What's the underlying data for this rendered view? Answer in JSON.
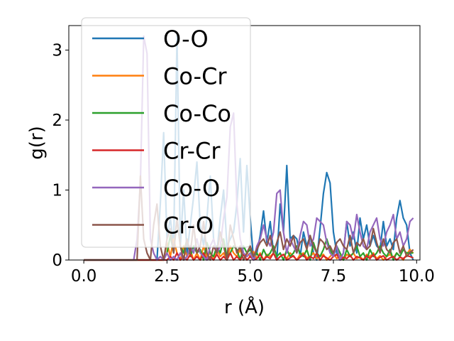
{
  "chart_data": {
    "type": "line",
    "xlabel": "r (Å)",
    "ylabel": "g(r)",
    "xlim": [
      -0.45,
      10.1
    ],
    "ylim": [
      0,
      3.35
    ],
    "xticks": [
      0.0,
      2.5,
      5.0,
      7.5,
      10.0
    ],
    "xtick_labels": [
      "0.0",
      "2.5",
      "5.0",
      "7.5",
      "10.0"
    ],
    "yticks": [
      0,
      1,
      2,
      3
    ],
    "ytick_labels": [
      "0",
      "1",
      "2",
      "3"
    ],
    "grid": false,
    "legend_position": "upper-left",
    "series": [
      {
        "name": "O-O",
        "color": "#1f77b4",
        "x": [
          0.0,
          1.6,
          2.2,
          2.3,
          2.4,
          2.5,
          2.6,
          2.7,
          2.8,
          2.9,
          3.0,
          3.1,
          3.2,
          3.3,
          3.4,
          3.5,
          3.6,
          3.7,
          3.8,
          3.9,
          4.0,
          4.1,
          4.2,
          4.3,
          4.4,
          4.5,
          4.6,
          4.7,
          4.8,
          4.9,
          5.0,
          5.1,
          5.2,
          5.3,
          5.4,
          5.5,
          5.6,
          5.7,
          5.8,
          5.9,
          6.0,
          6.1,
          6.2,
          6.3,
          6.4,
          6.5,
          6.6,
          6.7,
          6.8,
          6.9,
          7.0,
          7.1,
          7.2,
          7.3,
          7.4,
          7.5,
          7.6,
          7.7,
          7.8,
          7.9,
          8.0,
          8.1,
          8.2,
          8.3,
          8.4,
          8.5,
          8.6,
          8.7,
          8.8,
          8.9,
          9.0,
          9.1,
          9.2,
          9.3,
          9.4,
          9.5,
          9.6,
          9.7,
          9.8,
          9.9
        ],
        "y": [
          0.0,
          0.0,
          0.0,
          0.8,
          1.82,
          0.3,
          0.6,
          0.2,
          3.2,
          0.2,
          1.0,
          0.1,
          0.5,
          0.9,
          1.4,
          0.5,
          0.2,
          0.6,
          1.2,
          0.3,
          0.1,
          0.6,
          1.0,
          0.2,
          0.3,
          0.4,
          0.8,
          1.45,
          0.4,
          1.35,
          0.6,
          0.0,
          0.1,
          0.35,
          0.7,
          0.25,
          0.55,
          0.1,
          0.0,
          0.8,
          0.4,
          1.35,
          0.3,
          0.35,
          0.3,
          0.05,
          0.4,
          0.2,
          0.35,
          0.1,
          0.0,
          0.45,
          0.95,
          1.25,
          1.1,
          0.4,
          0.1,
          0.0,
          0.1,
          0.55,
          0.2,
          0.4,
          0.1,
          0.6,
          0.3,
          0.5,
          0.2,
          0.35,
          0.2,
          0.15,
          0.55,
          0.2,
          0.3,
          0.15,
          0.6,
          0.85,
          0.6,
          0.5,
          0.1,
          0.0
        ]
      },
      {
        "name": "Co-Cr",
        "color": "#ff7f0e",
        "x": [
          0.0,
          2.4,
          2.5,
          2.6,
          2.7,
          2.8,
          2.9,
          3.0,
          3.1,
          3.2,
          3.3,
          3.4,
          3.5,
          3.6,
          3.7,
          3.8,
          3.9,
          4.0,
          4.1,
          4.2,
          4.3,
          4.4,
          4.5,
          4.6,
          4.7,
          4.8,
          4.9,
          5.0,
          5.1,
          5.2,
          5.3,
          5.4,
          5.5,
          5.6,
          5.7,
          5.8,
          5.9,
          6.0,
          6.1,
          6.2,
          6.3,
          6.4,
          6.5,
          6.6,
          6.7,
          6.8,
          6.9,
          7.0,
          7.1,
          7.2,
          7.3,
          7.4,
          7.5,
          7.6,
          7.7,
          7.8,
          7.9,
          8.0,
          8.1,
          8.2,
          8.3,
          8.4,
          8.5,
          8.6,
          8.7,
          8.8,
          8.9,
          9.0,
          9.1,
          9.2,
          9.3,
          9.4,
          9.5,
          9.6,
          9.7,
          9.8,
          9.9
        ],
        "y": [
          0.0,
          0.0,
          0.25,
          0.05,
          0.3,
          0.1,
          0.0,
          0.2,
          0.05,
          0.15,
          0.0,
          0.1,
          0.0,
          0.2,
          0.05,
          0.1,
          0.0,
          0.15,
          0.05,
          0.1,
          0.0,
          0.2,
          0.1,
          0.05,
          0.15,
          0.0,
          0.1,
          0.05,
          0.12,
          0.02,
          0.1,
          0.0,
          0.08,
          0.05,
          0.1,
          0.0,
          0.05,
          0.08,
          0.02,
          0.1,
          0.05,
          0.0,
          0.08,
          0.1,
          0.03,
          0.05,
          0.1,
          0.02,
          0.05,
          0.08,
          0.0,
          0.05,
          0.1,
          0.02,
          0.06,
          0.0,
          0.08,
          0.05,
          0.1,
          0.02,
          0.05,
          0.0,
          0.08,
          0.05,
          0.1,
          0.02,
          0.06,
          0.0,
          0.05,
          0.08,
          0.03,
          0.1,
          0.05,
          0.0,
          0.08,
          0.15,
          0.1
        ]
      },
      {
        "name": "Co-Co",
        "color": "#2ca02c",
        "x": [
          0.0,
          2.4,
          2.5,
          2.6,
          2.7,
          2.8,
          2.9,
          3.0,
          3.1,
          3.2,
          3.3,
          3.4,
          3.5,
          3.6,
          3.7,
          3.8,
          3.9,
          4.0,
          4.1,
          4.2,
          4.3,
          4.4,
          4.5,
          4.6,
          4.7,
          4.8,
          4.9,
          5.0,
          5.1,
          5.2,
          5.3,
          5.4,
          5.5,
          5.6,
          5.7,
          5.8,
          5.9,
          6.0,
          6.1,
          6.2,
          6.3,
          6.4,
          6.5,
          6.6,
          6.7,
          6.8,
          6.9,
          7.0,
          7.1,
          7.2,
          7.3,
          7.4,
          7.5,
          7.6,
          7.7,
          7.8,
          7.9,
          8.0,
          8.1,
          8.2,
          8.3,
          8.4,
          8.5,
          8.6,
          8.7,
          8.8,
          8.9,
          9.0,
          9.1,
          9.2,
          9.3,
          9.4,
          9.5,
          9.6,
          9.7,
          9.8,
          9.9
        ],
        "y": [
          0.0,
          0.0,
          0.1,
          0.35,
          0.1,
          0.6,
          0.2,
          0.1,
          0.3,
          0.05,
          0.2,
          0.1,
          0.15,
          0.0,
          0.25,
          0.1,
          0.05,
          0.2,
          0.1,
          0.3,
          0.05,
          0.1,
          0.2,
          0.15,
          0.0,
          0.2,
          0.1,
          0.15,
          0.05,
          0.1,
          0.0,
          0.15,
          0.05,
          0.1,
          0.2,
          0.05,
          0.1,
          0.0,
          0.15,
          0.05,
          0.1,
          0.2,
          0.1,
          0.05,
          0.15,
          0.0,
          0.25,
          0.1,
          0.05,
          0.15,
          0.3,
          0.15,
          0.05,
          0.2,
          0.1,
          0.0,
          0.15,
          0.05,
          0.1,
          0.2,
          0.05,
          0.1,
          0.0,
          0.15,
          0.05,
          0.1,
          0.2,
          0.1,
          0.05,
          0.15,
          0.0,
          0.1,
          0.05,
          0.15,
          0.1,
          0.1,
          0.1
        ]
      },
      {
        "name": "Cr-Cr",
        "color": "#d62728",
        "x": [
          0.0,
          2.5,
          2.6,
          2.7,
          2.8,
          2.9,
          3.0,
          3.1,
          3.2,
          3.3,
          3.4,
          3.5,
          3.6,
          3.7,
          3.8,
          3.9,
          4.0,
          4.1,
          4.2,
          4.3,
          4.4,
          4.5,
          4.6,
          4.7,
          4.8,
          4.9,
          5.0,
          5.1,
          5.2,
          5.3,
          5.4,
          5.5,
          5.6,
          5.7,
          5.8,
          5.9,
          6.0,
          6.1,
          6.2,
          6.3,
          6.4,
          6.5,
          6.6,
          6.7,
          6.8,
          6.9,
          7.0,
          7.1,
          7.2,
          7.3,
          7.4,
          7.5,
          7.6,
          7.7,
          7.8,
          7.9,
          8.0,
          8.1,
          8.2,
          8.3,
          8.4,
          8.5,
          8.6,
          8.7,
          8.8,
          8.9,
          9.0,
          9.1,
          9.2,
          9.3,
          9.4,
          9.5,
          9.6,
          9.7,
          9.8,
          9.9
        ],
        "y": [
          0.0,
          0.0,
          0.05,
          0.0,
          0.1,
          0.0,
          0.05,
          0.0,
          0.08,
          0.0,
          0.05,
          0.0,
          0.1,
          0.0,
          0.05,
          0.0,
          0.08,
          0.0,
          0.05,
          0.0,
          0.1,
          0.0,
          0.05,
          0.0,
          0.08,
          0.0,
          0.05,
          0.0,
          0.02,
          0.08,
          0.0,
          0.05,
          0.02,
          0.1,
          0.0,
          0.05,
          0.08,
          0.0,
          0.03,
          0.06,
          0.0,
          0.04,
          0.08,
          0.0,
          0.05,
          0.02,
          0.1,
          0.0,
          0.06,
          0.03,
          0.0,
          0.05,
          0.08,
          0.0,
          0.04,
          0.02,
          0.07,
          0.0,
          0.05,
          0.03,
          0.0,
          0.06,
          0.02,
          0.08,
          0.0,
          0.04,
          0.06,
          0.0,
          0.03,
          0.05,
          0.0,
          0.04,
          0.02,
          0.06,
          0.05,
          0.03
        ]
      },
      {
        "name": "Co-O",
        "color": "#9467bd",
        "x": [
          0.0,
          1.5,
          1.6,
          1.7,
          1.8,
          1.9,
          2.0,
          2.1,
          2.2,
          2.3,
          2.4,
          2.5,
          2.6,
          2.7,
          2.8,
          2.9,
          3.0,
          3.1,
          3.2,
          3.3,
          3.4,
          3.5,
          3.6,
          3.7,
          3.8,
          3.9,
          4.0,
          4.1,
          4.2,
          4.3,
          4.4,
          4.5,
          4.6,
          4.7,
          4.8,
          4.9,
          5.0,
          5.1,
          5.2,
          5.3,
          5.4,
          5.5,
          5.6,
          5.7,
          5.8,
          5.9,
          6.0,
          6.1,
          6.2,
          6.3,
          6.4,
          6.5,
          6.6,
          6.7,
          6.8,
          6.9,
          7.0,
          7.1,
          7.2,
          7.3,
          7.4,
          7.5,
          7.6,
          7.7,
          7.8,
          7.9,
          8.0,
          8.1,
          8.2,
          8.3,
          8.4,
          8.5,
          8.6,
          8.7,
          8.8,
          8.9,
          9.0,
          9.1,
          9.2,
          9.3,
          9.4,
          9.5,
          9.6,
          9.7,
          9.8,
          9.9
        ],
        "y": [
          0.0,
          0.0,
          0.3,
          1.1,
          3.2,
          2.95,
          0.3,
          0.1,
          0.0,
          0.05,
          0.0,
          0.1,
          0.0,
          0.05,
          0.0,
          0.1,
          0.0,
          0.05,
          0.2,
          0.1,
          0.3,
          0.1,
          0.05,
          0.0,
          0.2,
          0.3,
          0.1,
          0.2,
          0.6,
          0.9,
          1.9,
          2.1,
          0.8,
          0.3,
          0.1,
          0.05,
          0.1,
          0.0,
          0.2,
          0.3,
          0.5,
          0.3,
          0.2,
          0.4,
          0.95,
          1.0,
          0.4,
          0.1,
          0.3,
          0.2,
          0.1,
          0.35,
          0.55,
          0.5,
          0.2,
          0.3,
          0.6,
          0.55,
          0.5,
          0.25,
          0.1,
          0.05,
          0.2,
          0.0,
          0.1,
          0.55,
          0.5,
          0.3,
          0.65,
          0.4,
          0.2,
          0.15,
          0.4,
          0.5,
          0.6,
          0.3,
          0.2,
          0.4,
          0.5,
          0.65,
          0.3,
          0.4,
          0.2,
          0.3,
          0.55,
          0.6
        ]
      },
      {
        "name": "Cr-O",
        "color": "#8c564b",
        "x": [
          0.0,
          1.6,
          1.7,
          1.8,
          1.9,
          2.0,
          2.1,
          2.2,
          2.3,
          2.4,
          2.5,
          2.6,
          2.7,
          2.8,
          2.9,
          3.0,
          3.1,
          3.2,
          3.3,
          3.4,
          3.5,
          3.6,
          3.7,
          3.8,
          3.9,
          4.0,
          4.1,
          4.2,
          4.3,
          4.4,
          4.5,
          4.6,
          4.7,
          4.8,
          4.9,
          5.0,
          5.1,
          5.2,
          5.3,
          5.4,
          5.5,
          5.6,
          5.7,
          5.8,
          5.9,
          6.0,
          6.1,
          6.2,
          6.3,
          6.4,
          6.5,
          6.6,
          6.7,
          6.8,
          6.9,
          7.0,
          7.1,
          7.2,
          7.3,
          7.4,
          7.5,
          7.6,
          7.7,
          7.8,
          7.9,
          8.0,
          8.1,
          8.2,
          8.3,
          8.4,
          8.5,
          8.6,
          8.7,
          8.8,
          8.9,
          9.0,
          9.1,
          9.2,
          9.3,
          9.4,
          9.5,
          9.6,
          9.7,
          9.8,
          9.9
        ],
        "y": [
          0.0,
          0.0,
          1.2,
          0.3,
          0.1,
          0.0,
          0.5,
          0.8,
          0.2,
          0.0,
          0.3,
          0.45,
          0.1,
          0.6,
          0.2,
          0.0,
          0.3,
          0.1,
          0.5,
          0.1,
          0.2,
          0.55,
          0.1,
          0.0,
          0.2,
          0.1,
          0.4,
          0.2,
          0.0,
          0.5,
          0.3,
          0.1,
          0.2,
          0.0,
          0.1,
          0.2,
          0.05,
          0.15,
          0.25,
          0.3,
          0.2,
          0.35,
          0.1,
          0.25,
          0.4,
          0.15,
          0.3,
          0.2,
          0.35,
          0.1,
          0.25,
          0.3,
          0.15,
          0.35,
          0.2,
          0.1,
          0.3,
          0.25,
          0.15,
          0.2,
          0.1,
          0.25,
          0.3,
          0.2,
          0.15,
          0.35,
          0.1,
          0.25,
          0.2,
          0.3,
          0.15,
          0.2,
          0.45,
          0.25,
          0.1,
          0.3,
          0.15,
          0.1,
          0.25,
          0.3,
          0.1,
          0.2,
          0.05,
          0.1,
          0.15
        ]
      }
    ]
  }
}
